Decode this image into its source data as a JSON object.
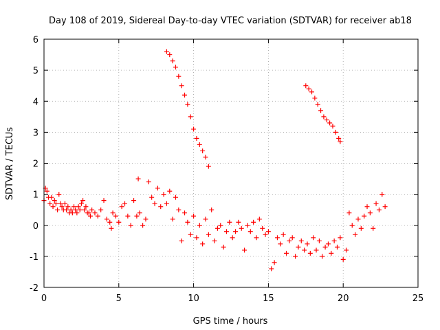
{
  "chart_data": {
    "type": "scatter",
    "title": "Day 108 of 2019, Sidereal Day-to-day VTEC variation (SDTVAR) for receiver ab18",
    "xlabel": "GPS time / hours",
    "ylabel": "SDTVAR / TECUs",
    "xlim": [
      0,
      25
    ],
    "ylim": [
      -2,
      6
    ],
    "xticks": [
      0,
      5,
      10,
      15,
      20,
      25
    ],
    "yticks": [
      -2,
      -1,
      0,
      1,
      2,
      3,
      4,
      5,
      6
    ],
    "grid": true,
    "marker": "plus",
    "series": [
      {
        "name": "SDTVAR",
        "color": "#ff0000",
        "x": [
          0.0,
          0.1,
          0.2,
          0.3,
          0.4,
          0.5,
          0.6,
          0.7,
          0.8,
          0.9,
          1.0,
          1.1,
          1.2,
          1.3,
          1.4,
          1.5,
          1.6,
          1.7,
          1.8,
          1.9,
          2.0,
          2.1,
          2.2,
          2.3,
          2.4,
          2.5,
          2.6,
          2.7,
          2.8,
          2.9,
          3.0,
          3.1,
          3.2,
          3.4,
          3.6,
          3.8,
          4.0,
          4.2,
          4.4,
          4.5,
          4.6,
          4.8,
          5.0,
          5.2,
          5.4,
          5.6,
          5.8,
          6.0,
          6.2,
          6.3,
          6.4,
          6.6,
          6.8,
          7.0,
          7.2,
          7.4,
          7.6,
          7.8,
          8.0,
          8.2,
          8.4,
          8.6,
          8.8,
          9.0,
          9.2,
          9.4,
          9.6,
          9.8,
          10.0,
          10.2,
          10.4,
          10.6,
          10.8,
          11.0,
          11.2,
          11.4,
          11.6,
          11.8,
          12.0,
          12.2,
          12.4,
          12.6,
          12.8,
          13.0,
          13.2,
          13.4,
          13.6,
          13.8,
          14.0,
          14.2,
          14.4,
          14.6,
          14.8,
          15.0,
          15.2,
          15.4,
          15.6,
          15.8,
          16.0,
          16.2,
          16.4,
          16.6,
          16.8,
          17.0,
          17.2,
          17.4,
          17.6,
          17.8,
          18.0,
          18.2,
          18.4,
          18.6,
          18.8,
          19.0,
          19.2,
          19.4,
          19.6,
          19.8,
          20.0,
          20.2,
          20.4,
          20.6,
          20.8,
          21.0,
          21.2,
          21.4,
          21.6,
          21.8,
          22.0,
          22.2,
          22.4,
          22.6,
          22.8,
          8.2,
          8.4,
          8.6,
          8.8,
          9.0,
          9.2,
          9.4,
          9.6,
          9.8,
          10.0,
          10.2,
          10.4,
          10.6,
          10.8,
          11.0,
          17.5,
          17.7,
          17.9,
          18.1,
          18.3,
          18.5,
          18.7,
          18.9,
          19.1,
          19.3,
          19.5,
          19.7,
          19.8
        ],
        "y": [
          0.8,
          1.2,
          1.1,
          0.9,
          0.7,
          0.9,
          0.6,
          0.8,
          0.7,
          0.5,
          1.0,
          0.7,
          0.6,
          0.5,
          0.7,
          0.5,
          0.6,
          0.4,
          0.5,
          0.4,
          0.6,
          0.5,
          0.4,
          0.6,
          0.5,
          0.7,
          0.8,
          0.5,
          0.6,
          0.4,
          0.4,
          0.3,
          0.5,
          0.4,
          0.3,
          0.5,
          0.8,
          0.2,
          0.1,
          -0.1,
          0.4,
          0.3,
          0.1,
          0.6,
          0.7,
          0.3,
          0.0,
          0.8,
          0.3,
          1.5,
          0.4,
          0.0,
          0.2,
          1.4,
          0.9,
          0.7,
          1.2,
          0.6,
          1.0,
          0.7,
          1.1,
          0.2,
          0.9,
          0.5,
          -0.5,
          0.4,
          0.1,
          -0.3,
          0.3,
          -0.4,
          0.0,
          -0.6,
          0.2,
          -0.3,
          0.5,
          -0.5,
          -0.1,
          0.0,
          -0.7,
          -0.2,
          0.1,
          -0.4,
          -0.2,
          0.1,
          -0.1,
          -0.8,
          0.0,
          -0.2,
          0.1,
          -0.4,
          0.2,
          -0.1,
          -0.3,
          -0.2,
          -1.4,
          -1.2,
          -0.4,
          -0.6,
          -0.3,
          -0.9,
          -0.5,
          -0.4,
          -1.0,
          -0.7,
          -0.5,
          -0.8,
          -0.6,
          -0.9,
          -0.4,
          -0.8,
          -0.5,
          -1.0,
          -0.7,
          -0.6,
          -0.9,
          -0.5,
          -0.7,
          -0.4,
          -1.1,
          -0.8,
          0.4,
          0.0,
          -0.3,
          0.2,
          -0.1,
          0.3,
          0.6,
          0.4,
          -0.1,
          0.7,
          0.5,
          1.0,
          0.6,
          5.6,
          5.5,
          5.3,
          5.1,
          4.8,
          4.5,
          4.2,
          3.9,
          3.5,
          3.1,
          2.8,
          2.6,
          2.4,
          2.2,
          1.9,
          4.5,
          4.4,
          4.3,
          4.1,
          3.9,
          3.7,
          3.5,
          3.4,
          3.3,
          3.2,
          3.0,
          2.8,
          2.7
        ]
      }
    ]
  }
}
